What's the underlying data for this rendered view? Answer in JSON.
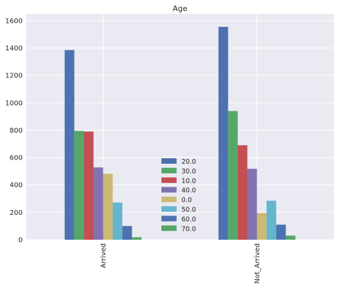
{
  "chart_data": {
    "type": "bar",
    "title": "Age",
    "xlabel": "",
    "ylabel": "",
    "categories": [
      "Arrived",
      "Not_Arrived"
    ],
    "ylim": [
      0,
      1650
    ],
    "yticks": [
      0,
      200,
      400,
      600,
      800,
      1000,
      1200,
      1400,
      1600
    ],
    "grid": true,
    "legend_position": "center",
    "series": [
      {
        "name": "20.0",
        "color": "#4C72B0",
        "values": [
          1385,
          1555
        ]
      },
      {
        "name": "30.0",
        "color": "#55A868",
        "values": [
          795,
          940
        ]
      },
      {
        "name": "10.0",
        "color": "#C44E52",
        "values": [
          790,
          690
        ]
      },
      {
        "name": "40.0",
        "color": "#8172B2",
        "values": [
          528,
          518
        ]
      },
      {
        "name": "0.0",
        "color": "#CCB974",
        "values": [
          482,
          195
        ]
      },
      {
        "name": "50.0",
        "color": "#64B5CD",
        "values": [
          272,
          285
        ]
      },
      {
        "name": "60.0",
        "color": "#4C72B0",
        "values": [
          100,
          110
        ]
      },
      {
        "name": "70.0",
        "color": "#55A868",
        "values": [
          18,
          30
        ]
      }
    ]
  }
}
